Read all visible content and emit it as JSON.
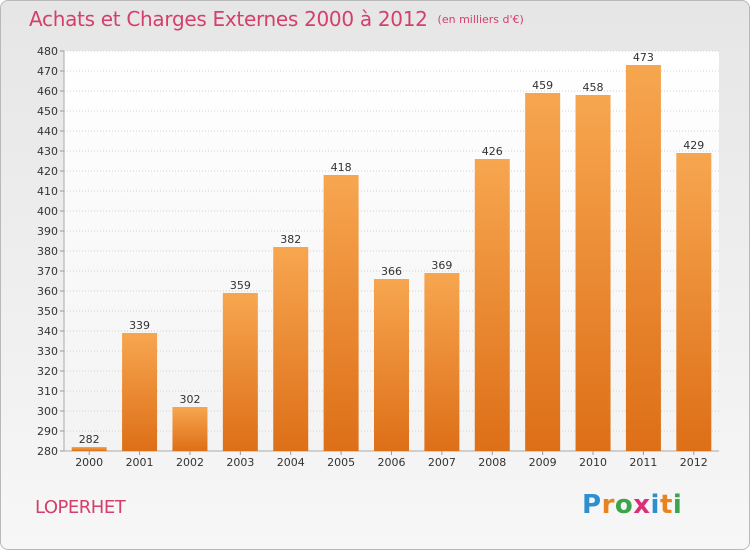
{
  "title": "Achats et Charges Externes 2000 à 2012",
  "subtitle": "(en milliers d'€)",
  "place": "LOPERHET",
  "logo": {
    "letters": [
      "P",
      "r",
      "o",
      "x",
      "i",
      "t",
      "i"
    ],
    "colors": [
      "#2e8fd0",
      "#e8831f",
      "#3aa54a",
      "#d9307a",
      "#2e8fd0",
      "#e8831f",
      "#3aa54a"
    ]
  },
  "chart_data": {
    "type": "bar",
    "categories": [
      "2000",
      "2001",
      "2002",
      "2003",
      "2004",
      "2005",
      "2006",
      "2007",
      "2008",
      "2009",
      "2010",
      "2011",
      "2012"
    ],
    "values": [
      282,
      339,
      302,
      359,
      382,
      418,
      366,
      369,
      426,
      459,
      458,
      473,
      429
    ],
    "title": "Achats et Charges Externes 2000 à 2012",
    "xlabel": "",
    "ylabel": "",
    "ylim": [
      280,
      480
    ],
    "yticks": [
      280,
      290,
      300,
      310,
      320,
      330,
      340,
      350,
      360,
      370,
      380,
      390,
      400,
      410,
      420,
      430,
      440,
      450,
      460,
      470,
      480
    ],
    "grid": true,
    "bar_color": "#f08c32"
  }
}
